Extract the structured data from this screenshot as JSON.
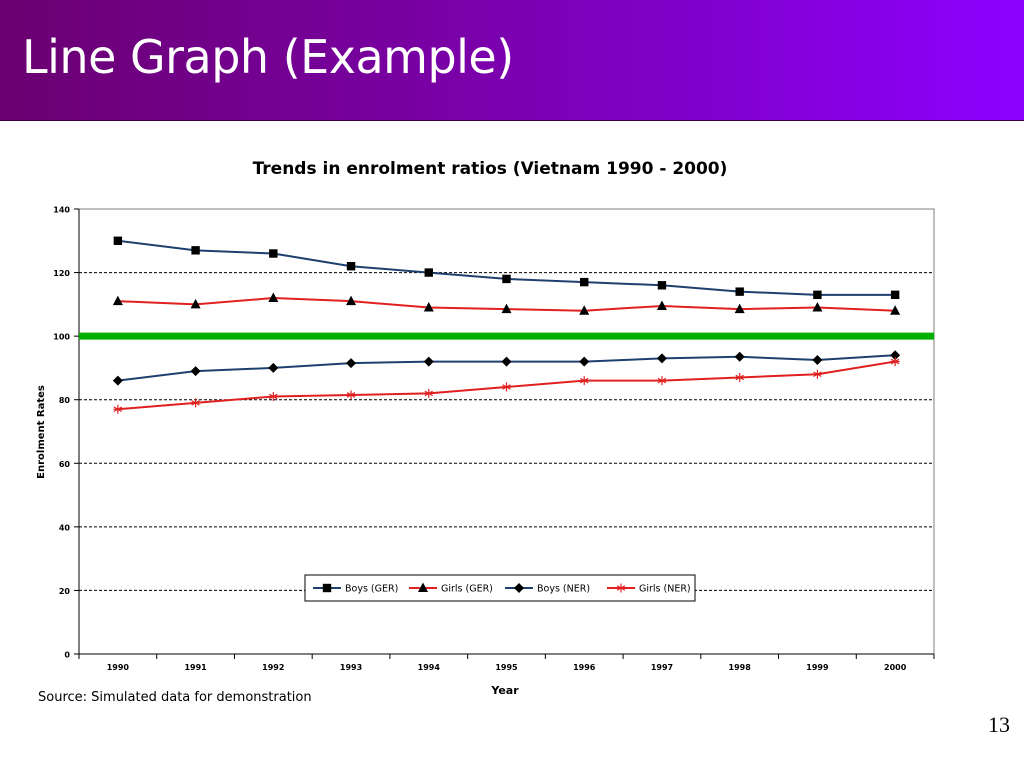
{
  "slide": {
    "title": "Line Graph (Example)",
    "page_number": "13"
  },
  "chart_data": {
    "type": "line",
    "title": "Trends in enrolment ratios (Vietnam 1990 - 2000)",
    "xlabel": "Year",
    "ylabel": "Enrolment Rates",
    "categories": [
      "1990",
      "1991",
      "1992",
      "1993",
      "1994",
      "1995",
      "1996",
      "1997",
      "1998",
      "1999",
      "2000"
    ],
    "ylim": [
      0,
      140
    ],
    "yticks": [
      0,
      20,
      40,
      60,
      80,
      100,
      120,
      140
    ],
    "grid": "horizontal dashed",
    "legend_position": "bottom-center",
    "reference_line": {
      "value": 100,
      "color": "#00b000"
    },
    "series": [
      {
        "name": "Boys (GER)",
        "marker": "square",
        "color": "#1f3f6e",
        "values": [
          130,
          127,
          126,
          122,
          120,
          118,
          117,
          116,
          114,
          113,
          113
        ]
      },
      {
        "name": "Girls (GER)",
        "marker": "triangle",
        "color": "#e02020",
        "values": [
          111,
          110,
          112,
          111,
          109,
          108.5,
          108,
          109.5,
          108.5,
          109,
          108
        ]
      },
      {
        "name": "Boys (NER)",
        "marker": "diamond",
        "color": "#1f3f6e",
        "values": [
          86,
          89,
          90,
          91.5,
          92,
          92,
          92,
          93,
          93.5,
          92.5,
          94
        ]
      },
      {
        "name": "Girls (NER)",
        "marker": "star",
        "color": "#e02020",
        "values": [
          77,
          79,
          81,
          81.5,
          82,
          84,
          86,
          86,
          87,
          88,
          92
        ]
      }
    ],
    "source": "Source: Simulated data for demonstration"
  }
}
